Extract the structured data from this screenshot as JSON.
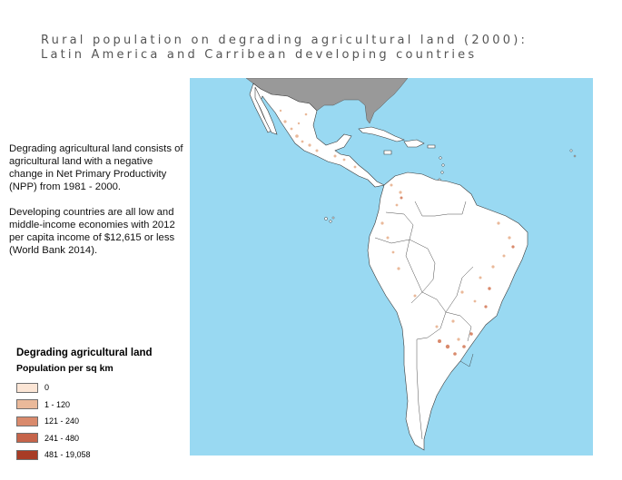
{
  "title": {
    "line1": "Rural population on degrading agricultural land (2000):",
    "line2": "Latin America and Carribean developing countries"
  },
  "description": {
    "paragraph1": "Degrading agricultural land consists of agricultural land with a negative change in Net Primary Productivity (NPP) from 1981 - 2000.",
    "paragraph2": "Developing countries are all low and middle-income economies with 2012 per capita income of $12,615 or less (World Bank 2014)."
  },
  "legend": {
    "title": "Degrading agricultural land",
    "subtitle": "Population per sq km",
    "items": [
      {
        "label": "0",
        "color": "#fbe5d5"
      },
      {
        "label": "1 - 120",
        "color": "#eab99a"
      },
      {
        "label": "121 - 240",
        "color": "#d98a6c"
      },
      {
        "label": "241 - 480",
        "color": "#c6644a"
      },
      {
        "label": "481 - 19,058",
        "color": "#a83c26"
      }
    ]
  },
  "map": {
    "ocean_color": "#99d9f2",
    "land_color": "#ffffff",
    "non_study_land_color": "#999999",
    "border_color": "#3a3a3a"
  }
}
